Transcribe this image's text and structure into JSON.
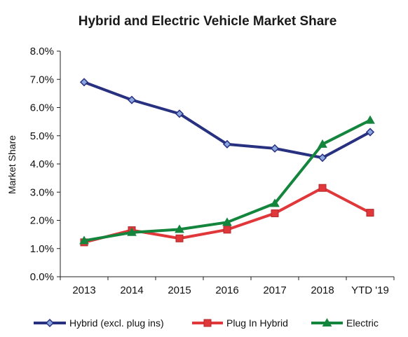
{
  "chart_data": {
    "type": "line",
    "title": "Hybrid and Electric Vehicle Market Share",
    "xlabel": "",
    "ylabel": "Market Share",
    "categories": [
      "2013",
      "2014",
      "2015",
      "2016",
      "2017",
      "2018",
      "YTD '19"
    ],
    "ylim": [
      0,
      8
    ],
    "yticks": [
      "0.0%",
      "1.0%",
      "2.0%",
      "3.0%",
      "4.0%",
      "5.0%",
      "6.0%",
      "7.0%",
      "8.0%"
    ],
    "grid": false,
    "legend_position": "bottom",
    "series": [
      {
        "name": "Hybrid (excl. plug ins)",
        "color": "#283080",
        "marker": "diamond",
        "values": [
          6.9,
          6.27,
          5.78,
          4.7,
          4.55,
          4.22,
          5.13
        ]
      },
      {
        "name": "Plug In Hybrid",
        "color": "#e0373a",
        "marker": "square",
        "values": [
          1.22,
          1.65,
          1.36,
          1.67,
          2.25,
          3.15,
          2.27
        ]
      },
      {
        "name": "Electric",
        "color": "#14853c",
        "marker": "triangle",
        "values": [
          1.28,
          1.57,
          1.68,
          1.93,
          2.6,
          4.7,
          5.55
        ]
      }
    ]
  }
}
